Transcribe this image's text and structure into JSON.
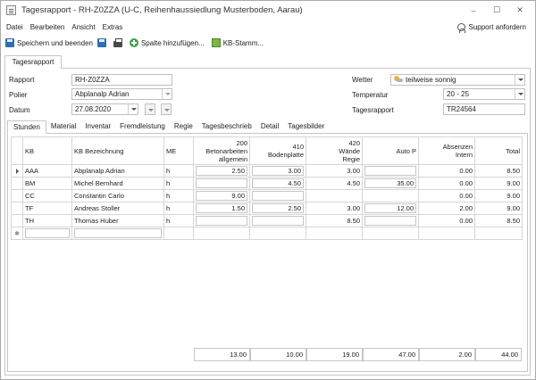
{
  "window": {
    "title": "Tagesrapport - RH-Z0ZZA (U-C, Reihenhaussiedlung Musterboden, Aarau)",
    "controls": {
      "minimize": "–",
      "maximize": "☐",
      "close": "✕"
    }
  },
  "menu": {
    "items": [
      "Datei",
      "Bearbeiten",
      "Ansicht",
      "Extras"
    ],
    "support": "Support anfordern"
  },
  "toolbar": {
    "save_close": "Speichern und beenden",
    "add_column": "Spalte hinzufügen...",
    "kb_stamm": "KB-Stamm..."
  },
  "outer_tab": "Tagesrapport",
  "form": {
    "rapport_label": "Rapport",
    "rapport_value": "RH-Z0ZZA",
    "polier_label": "Polier",
    "polier_value": "Abplanalp Adrian",
    "datum_label": "Datum",
    "datum_value": "27.08.2020",
    "wetter_label": "Wetter",
    "wetter_value": "teilweise sonnig",
    "temperatur_label": "Temperatur",
    "temperatur_value": "20 - 25",
    "tagesrapport_label": "Tagesrapport",
    "tagesrapport_value": "TR24564"
  },
  "tabs": [
    "Stunden",
    "Material",
    "Inventar",
    "Fremdleistung",
    "Regie",
    "Tagesbeschrieb",
    "Detail",
    "Tagesbilder"
  ],
  "grid": {
    "headers": {
      "kb": "KB",
      "kb_bezeichnung": "KB Bezeichnung",
      "me": "ME",
      "c200_1": "200",
      "c200_2": "Betonarbeiten",
      "c200_3": "allgemein",
      "c410_1": "410",
      "c410_2": "Bodenplatte",
      "c420_1": "420",
      "c420_2": "Wände",
      "c420_3": "Regie",
      "autop": "Auto P",
      "abs_1": "Absenzen",
      "abs_2": "Intern",
      "total": "Total"
    },
    "rows": [
      {
        "kb": "AAA",
        "name": "Abplanalp Adrian",
        "me": "h",
        "c200": "2.50",
        "c410": "3.00",
        "c420": "3.00",
        "autop": "",
        "abs": "0.00",
        "total": "8.50"
      },
      {
        "kb": "BM",
        "name": "Michel Bernhard",
        "me": "h",
        "c200": "",
        "c410": "4.50",
        "c420": "4.50",
        "autop": "35.00",
        "abs": "0.00",
        "total": "9.00"
      },
      {
        "kb": "CC",
        "name": "Constantin Carlo",
        "me": "h",
        "c200": "9.00",
        "c410": "",
        "c420": "",
        "autop": "",
        "abs": "0.00",
        "total": "9.00"
      },
      {
        "kb": "TF",
        "name": "Andreas Stoller",
        "me": "h",
        "c200": "1.50",
        "c410": "2.50",
        "c420": "3.00",
        "autop": "12.00",
        "abs": "2.00",
        "total": "9.00"
      },
      {
        "kb": "TH",
        "name": "Thomas Huber",
        "me": "h",
        "c200": "",
        "c410": "",
        "c420": "8.50",
        "autop": "",
        "abs": "0.00",
        "total": "8.50"
      }
    ],
    "totals": {
      "c200": "13.00",
      "c410": "10.00",
      "c420": "19.00",
      "autop": "47.00",
      "abs": "2.00",
      "total": "44.00"
    }
  }
}
